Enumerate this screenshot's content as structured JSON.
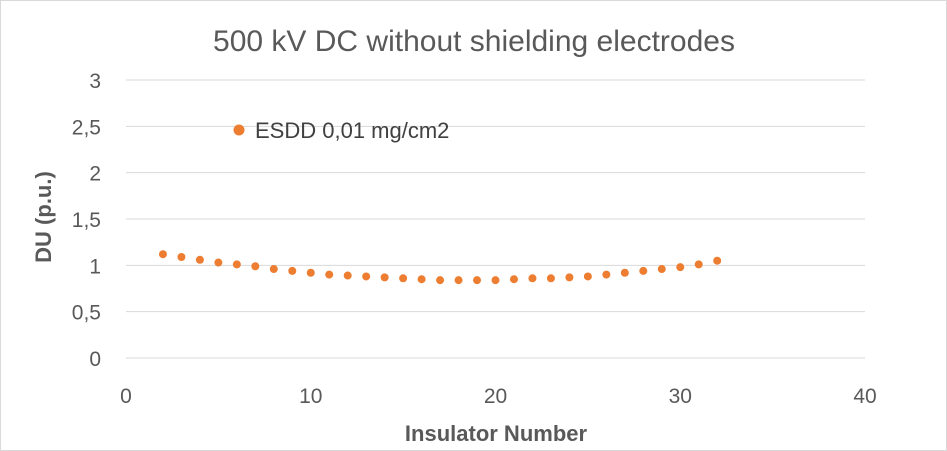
{
  "chart_data": {
    "type": "scatter",
    "title": "500 kV DC without shielding electrodes",
    "xlabel": "Insulator Number",
    "ylabel": "DU (p.u.)",
    "xlim": [
      0,
      40
    ],
    "ylim": [
      0,
      3
    ],
    "x_ticks": [
      "0",
      "10",
      "20",
      "30",
      "40"
    ],
    "y_ticks": [
      "0",
      "0,5",
      "1",
      "1,5",
      "2",
      "2,5",
      "3"
    ],
    "grid": "horizontal",
    "legend_position": "top-left",
    "marker_color": "#ED7D31",
    "series": [
      {
        "name": "ESDD 0,01 mg/cm2",
        "x": [
          2,
          3,
          4,
          5,
          6,
          7,
          8,
          9,
          10,
          11,
          12,
          13,
          14,
          15,
          16,
          17,
          18,
          19,
          20,
          21,
          22,
          23,
          24,
          25,
          26,
          27,
          28,
          29,
          30,
          31,
          32
        ],
        "y": [
          1.12,
          1.09,
          1.06,
          1.03,
          1.01,
          0.99,
          0.96,
          0.94,
          0.92,
          0.9,
          0.89,
          0.88,
          0.87,
          0.86,
          0.85,
          0.84,
          0.84,
          0.84,
          0.84,
          0.85,
          0.86,
          0.86,
          0.87,
          0.88,
          0.9,
          0.92,
          0.94,
          0.96,
          0.98,
          1.01,
          1.05
        ]
      }
    ]
  }
}
